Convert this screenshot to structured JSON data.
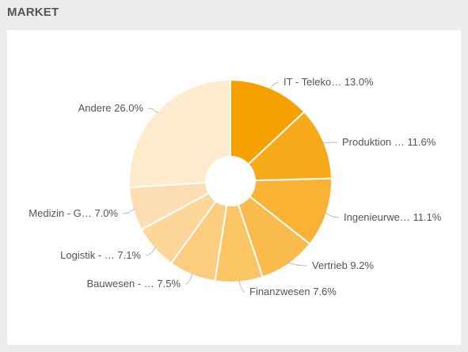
{
  "widget": {
    "title": "MARKET"
  },
  "chart_data": {
    "type": "pie",
    "donut": true,
    "title": "",
    "slices": [
      {
        "label": "IT - Teleko…",
        "value": 13.0,
        "value_text": "13.0%",
        "color": "#f7a100"
      },
      {
        "label": "Produktion …",
        "value": 11.6,
        "value_text": "11.6%",
        "color": "#f8a919"
      },
      {
        "label": "Ingenieurwe…",
        "value": 11.1,
        "value_text": "11.1%",
        "color": "#f9b233"
      },
      {
        "label": "Vertrieb",
        "value": 9.2,
        "value_text": "9.2%",
        "color": "#fabb4d"
      },
      {
        "label": "Finanzwesen",
        "value": 7.6,
        "value_text": "7.6%",
        "color": "#fbc566"
      },
      {
        "label": "Bauwesen - …",
        "value": 7.5,
        "value_text": "7.5%",
        "color": "#fccd7f"
      },
      {
        "label": "Logistik - …",
        "value": 7.1,
        "value_text": "7.1%",
        "color": "#fdd699"
      },
      {
        "label": "Medizin - G…",
        "value": 7.0,
        "value_text": "7.0%",
        "color": "#fddeb2"
      },
      {
        "label": "Andere",
        "value": 26.0,
        "value_text": "26.0%",
        "color": "#feeacc"
      }
    ]
  }
}
